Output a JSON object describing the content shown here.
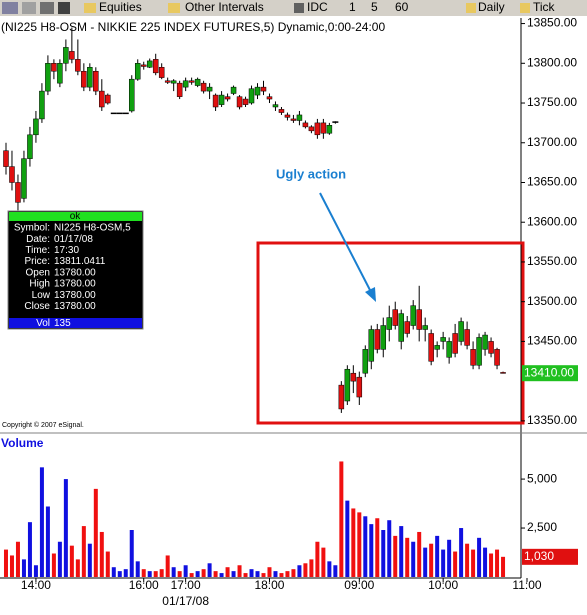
{
  "toolbar": {
    "items": [
      "Equities",
      "Other Intervals",
      "IDC",
      "1",
      "5",
      "60",
      "Daily",
      "Tick"
    ]
  },
  "copyright": "Copyright © 2007 eSignal.",
  "info_box": {
    "status": "ok",
    "rows": [
      [
        "Symbol:",
        "NI225 H8-OSM,5"
      ],
      [
        "Date:",
        "01/17/08"
      ],
      [
        "Time:",
        "17:30"
      ],
      [
        "Price:",
        "13811.0411"
      ],
      [
        "Open",
        "13780.00"
      ],
      [
        "High",
        "13780.00"
      ],
      [
        "Low",
        "13780.00"
      ],
      [
        "Close",
        "13780.00"
      ]
    ],
    "volume_row": [
      "Vol",
      "135"
    ]
  },
  "chart_data": [
    {
      "type": "candlestick",
      "title": "(NI225 H8-OSM - NIKKIE 225 INDEX FUTURES,5) Dynamic,0:00-24:00",
      "annotation": "Ugly action",
      "up_color": "#10a010",
      "down_color": "#e01010",
      "xlim": [
        -1,
        86
      ],
      "ylim": [
        13336,
        13857
      ],
      "yticks": [
        {
          "value": 13850,
          "label": "13850.00"
        },
        {
          "value": 13800,
          "label": "13800.00"
        },
        {
          "value": 13750,
          "label": "13750.00"
        },
        {
          "value": 13700,
          "label": "13700.00"
        },
        {
          "value": 13650,
          "label": "13650.00"
        },
        {
          "value": 13600,
          "label": "13600.00"
        },
        {
          "value": 13550,
          "label": "13550.00"
        },
        {
          "value": 13500,
          "label": "13500.00"
        },
        {
          "value": 13450,
          "label": "13450.00"
        },
        {
          "value": 13350,
          "label": "13350.00"
        }
      ],
      "last_value": {
        "value": 13410,
        "label": "13410.00"
      },
      "open": [
        13690,
        13670,
        13650,
        13630,
        13680,
        13710,
        13730,
        13765,
        13800,
        13775,
        13800,
        13815,
        13805,
        13790,
        13770,
        13790,
        13765,
        13760,
        13737,
        13737,
        13737,
        13740,
        13780,
        13798,
        13795,
        13805,
        13795,
        13778,
        13775,
        13775,
        13770,
        13778,
        13772,
        13775,
        13765,
        13760,
        13748,
        13758,
        13762,
        13758,
        13755,
        13750,
        13760,
        13770,
        13758,
        13745,
        13742,
        13735,
        13730,
        13728,
        13725,
        13720,
        13725,
        13725,
        13712,
        13726,
        13395,
        13375,
        13410,
        13405,
        13410,
        13425,
        13465,
        13440,
        13465,
        13490,
        13450,
        13475,
        13470,
        13490,
        13465,
        13460,
        13440,
        13450,
        13430,
        13460,
        13450,
        13465,
        13440,
        13420,
        13440,
        13450,
        13440,
        13411
      ],
      "high": [
        13700,
        13690,
        13660,
        13690,
        13720,
        13740,
        13775,
        13810,
        13805,
        13805,
        13830,
        13845,
        13830,
        13800,
        13800,
        13795,
        13780,
        13762,
        13737,
        13737,
        13737,
        13785,
        13805,
        13802,
        13806,
        13812,
        13800,
        13782,
        13780,
        13778,
        13782,
        13782,
        13782,
        13778,
        13775,
        13762,
        13765,
        13762,
        13772,
        13760,
        13758,
        13772,
        13775,
        13778,
        13762,
        13752,
        13745,
        13738,
        13735,
        13740,
        13728,
        13722,
        13730,
        13730,
        13725,
        13727,
        13400,
        13420,
        13420,
        13412,
        13445,
        13470,
        13472,
        13480,
        13495,
        13500,
        13490,
        13482,
        13502,
        13520,
        13480,
        13465,
        13450,
        13462,
        13455,
        13472,
        13480,
        13475,
        13450,
        13460,
        13462,
        13455,
        13442,
        13412
      ],
      "low": [
        13660,
        13640,
        13615,
        13625,
        13670,
        13700,
        13725,
        13760,
        13780,
        13770,
        13790,
        13800,
        13785,
        13765,
        13765,
        13760,
        13740,
        13748,
        13737,
        13737,
        13737,
        13738,
        13778,
        13792,
        13794,
        13785,
        13780,
        13774,
        13765,
        13755,
        13765,
        13773,
        13770,
        13762,
        13755,
        13740,
        13745,
        13752,
        13760,
        13742,
        13745,
        13748,
        13755,
        13760,
        13750,
        13740,
        13735,
        13728,
        13725,
        13722,
        13718,
        13712,
        13705,
        13705,
        13710,
        13724,
        13360,
        13370,
        13385,
        13370,
        13405,
        13415,
        13435,
        13430,
        13450,
        13465,
        13440,
        13455,
        13465,
        13450,
        13450,
        13420,
        13430,
        13440,
        13422,
        13430,
        13445,
        13440,
        13415,
        13415,
        13432,
        13430,
        13415,
        13410
      ],
      "close": [
        13670,
        13650,
        13625,
        13680,
        13710,
        13730,
        13765,
        13800,
        13790,
        13800,
        13820,
        13805,
        13790,
        13770,
        13795,
        13765,
        13745,
        13750,
        13737,
        13737,
        13737,
        13780,
        13800,
        13796,
        13803,
        13788,
        13782,
        13776,
        13778,
        13758,
        13778,
        13776,
        13780,
        13765,
        13770,
        13745,
        13760,
        13755,
        13770,
        13745,
        13748,
        13768,
        13770,
        13765,
        13755,
        13748,
        13738,
        13732,
        13728,
        13735,
        13720,
        13715,
        13710,
        13712,
        13722,
        13726,
        13365,
        13415,
        13400,
        13380,
        13440,
        13465,
        13440,
        13470,
        13480,
        13470,
        13485,
        13460,
        13495,
        13465,
        13470,
        13425,
        13445,
        13455,
        13450,
        13435,
        13475,
        13445,
        13420,
        13455,
        13458,
        13435,
        13420,
        13410
      ]
    },
    {
      "type": "bar",
      "title": "Volume",
      "up_color": "#1010e0",
      "down_color": "#f01010",
      "xlim": [
        -1,
        86
      ],
      "ylim": [
        0,
        7200
      ],
      "yticks": [
        {
          "value": 5000,
          "label": "5,000"
        },
        {
          "value": 2500,
          "label": "2,500"
        }
      ],
      "last_value": {
        "value": 1030,
        "label": "1,030"
      },
      "xticks": [
        {
          "value": 5,
          "label": "14:00"
        },
        {
          "value": 23,
          "label": "16:00"
        },
        {
          "value": 30,
          "label": "17:00"
        },
        {
          "value": 44,
          "label": "18:00"
        },
        {
          "value": 59,
          "label": "09:00"
        },
        {
          "value": 73,
          "label": "10:00"
        },
        {
          "value": 87,
          "label": "11:00"
        }
      ],
      "date_label": "01/17/08",
      "values": [
        1400,
        1100,
        1800,
        900,
        2800,
        600,
        5600,
        3600,
        1200,
        1800,
        5000,
        1600,
        900,
        2600,
        1700,
        4500,
        2300,
        1300,
        500,
        300,
        400,
        2400,
        800,
        400,
        300,
        300,
        400,
        1100,
        500,
        300,
        600,
        200,
        300,
        400,
        700,
        300,
        200,
        500,
        300,
        600,
        200,
        400,
        300,
        200,
        500,
        300,
        200,
        300,
        400,
        600,
        700,
        900,
        1800,
        1500,
        800,
        600,
        5900,
        3900,
        3500,
        3300,
        3100,
        2700,
        3000,
        2400,
        2900,
        2100,
        2600,
        2000,
        1800,
        2300,
        1500,
        1700,
        2100,
        1400,
        1900,
        1300,
        2500,
        1700,
        1400,
        2000,
        1500,
        1200,
        1400,
        1030
      ]
    }
  ]
}
